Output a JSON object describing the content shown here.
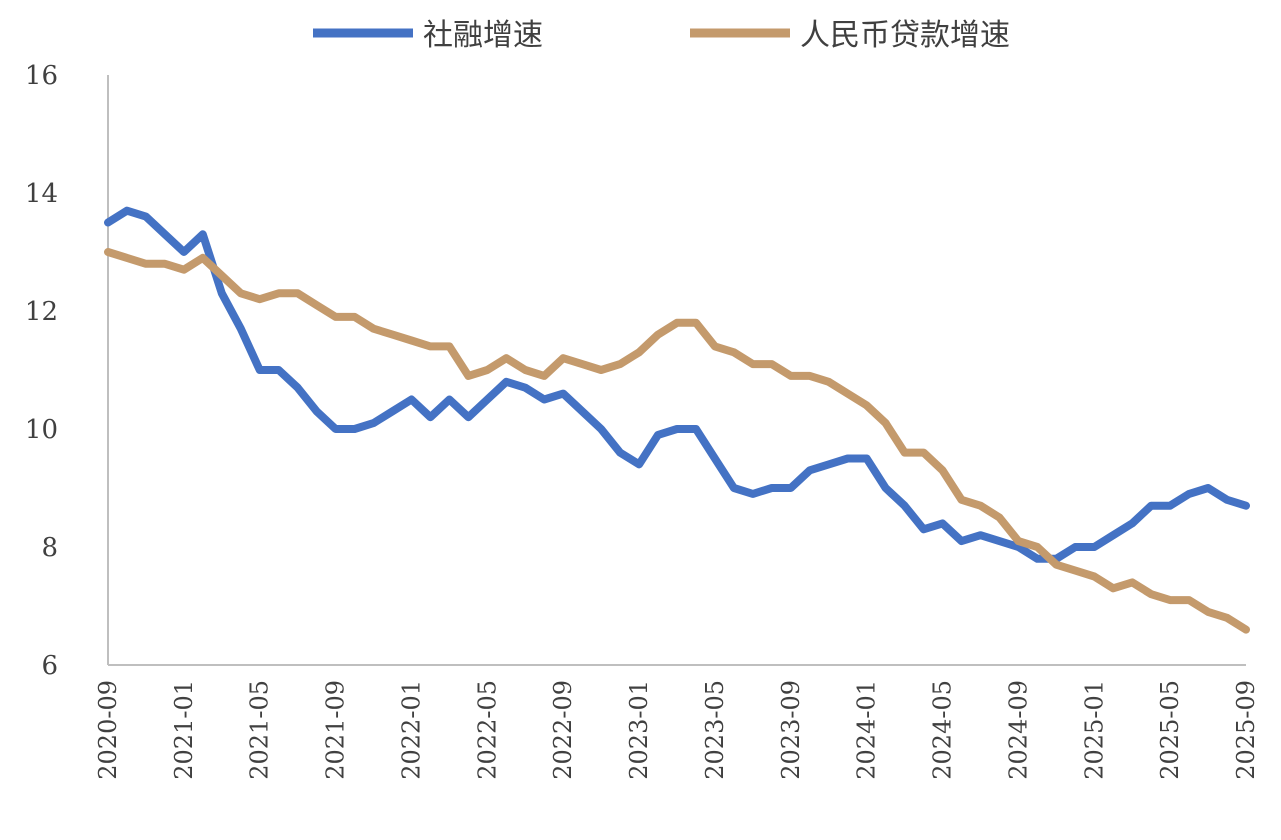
{
  "chart_data": {
    "type": "line",
    "title": "",
    "xlabel": "",
    "ylabel": "",
    "ylim": [
      6,
      16
    ],
    "yticks": [
      6,
      8,
      10,
      12,
      14,
      16
    ],
    "grid": false,
    "legend_position": "top-center",
    "x": [
      "2020-09",
      "2020-10",
      "2020-11",
      "2020-12",
      "2021-01",
      "2021-02",
      "2021-03",
      "2021-04",
      "2021-05",
      "2021-06",
      "2021-07",
      "2021-08",
      "2021-09",
      "2021-10",
      "2021-11",
      "2021-12",
      "2022-01",
      "2022-02",
      "2022-03",
      "2022-04",
      "2022-05",
      "2022-06",
      "2022-07",
      "2022-08",
      "2022-09",
      "2022-10",
      "2022-11",
      "2022-12",
      "2023-01",
      "2023-02",
      "2023-03",
      "2023-04",
      "2023-05",
      "2023-06",
      "2023-07",
      "2023-08",
      "2023-09",
      "2023-10",
      "2023-11",
      "2023-12",
      "2024-01",
      "2024-02",
      "2024-03",
      "2024-04",
      "2024-05",
      "2024-06",
      "2024-07",
      "2024-08",
      "2024-09",
      "2024-10",
      "2024-11",
      "2024-12",
      "2025-01",
      "2025-02",
      "2025-03",
      "2025-04",
      "2025-05",
      "2025-06",
      "2025-07",
      "2025-08",
      "2025-09"
    ],
    "x_tick_labels": [
      "2020-09",
      "2021-01",
      "2021-05",
      "2021-09",
      "2022-01",
      "2022-05",
      "2022-09",
      "2023-01",
      "2023-05",
      "2023-09",
      "2024-01",
      "2024-05",
      "2024-09",
      "2025-01",
      "2025-05",
      "2025-09"
    ],
    "series": [
      {
        "name": "社融增速",
        "color": "#4472C4",
        "values": [
          13.5,
          13.7,
          13.6,
          13.3,
          13.0,
          13.3,
          12.3,
          11.7,
          11.0,
          11.0,
          10.7,
          10.3,
          10.0,
          10.0,
          10.1,
          10.3,
          10.5,
          10.2,
          10.5,
          10.2,
          10.5,
          10.8,
          10.7,
          10.5,
          10.6,
          10.3,
          10.0,
          9.6,
          9.4,
          9.9,
          10.0,
          10.0,
          9.5,
          9.0,
          8.9,
          9.0,
          9.0,
          9.3,
          9.4,
          9.5,
          9.5,
          9.0,
          8.7,
          8.3,
          8.4,
          8.1,
          8.2,
          8.1,
          8.0,
          7.8,
          7.8,
          8.0,
          8.0,
          8.2,
          8.4,
          8.7,
          8.7,
          8.9,
          9.0,
          8.8,
          8.7
        ]
      },
      {
        "name": "人民币贷款增速",
        "color": "#C49A6C",
        "values": [
          13.0,
          12.9,
          12.8,
          12.8,
          12.7,
          12.9,
          12.6,
          12.3,
          12.2,
          12.3,
          12.3,
          12.1,
          11.9,
          11.9,
          11.7,
          11.6,
          11.5,
          11.4,
          11.4,
          10.9,
          11.0,
          11.2,
          11.0,
          10.9,
          11.2,
          11.1,
          11.0,
          11.1,
          11.3,
          11.6,
          11.8,
          11.8,
          11.4,
          11.3,
          11.1,
          11.1,
          10.9,
          10.9,
          10.8,
          10.6,
          10.4,
          10.1,
          9.6,
          9.6,
          9.3,
          8.8,
          8.7,
          8.5,
          8.1,
          8.0,
          7.7,
          7.6,
          7.5,
          7.3,
          7.4,
          7.2,
          7.1,
          7.1,
          6.9,
          6.8,
          6.6
        ]
      }
    ]
  }
}
